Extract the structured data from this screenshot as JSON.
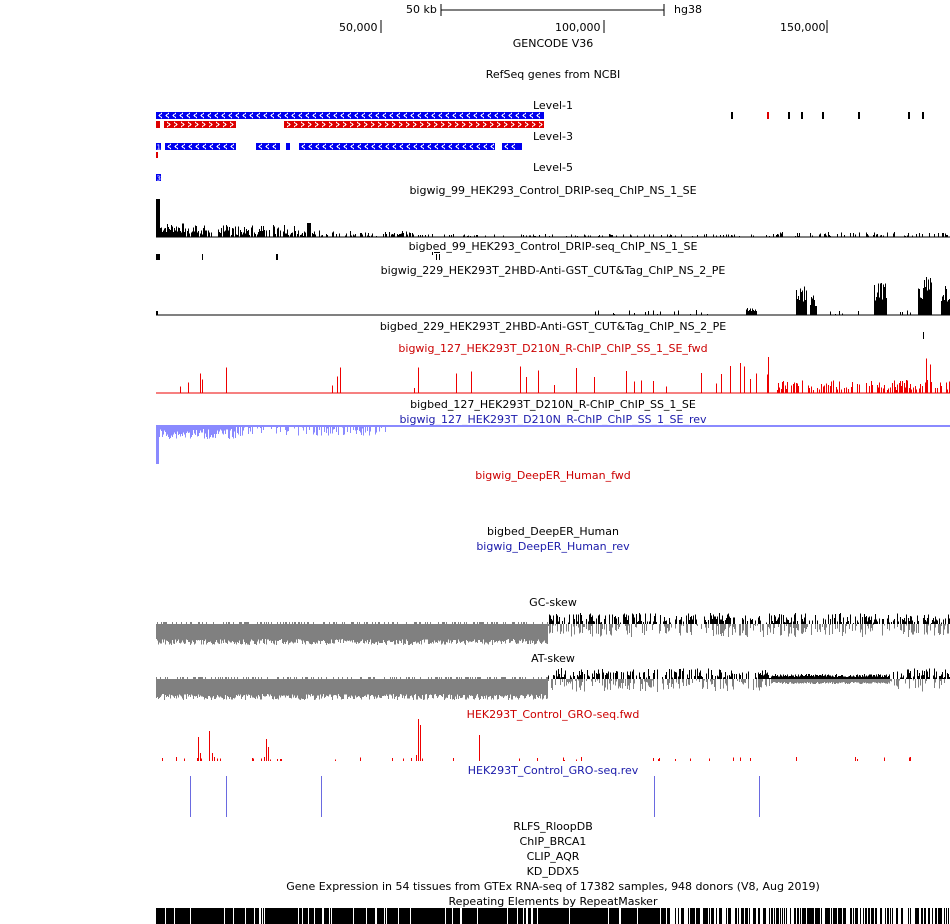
{
  "ruler": {
    "scale_label": "50 kb",
    "assembly": "hg38",
    "ticks": [
      "50,000",
      "100,000",
      "150,000"
    ]
  },
  "tracks": [
    {
      "id": "gencode",
      "label": "GENCODE V36",
      "color": "#000000"
    },
    {
      "id": "refseq",
      "label": "RefSeq genes from NCBI",
      "color": "#000000"
    },
    {
      "id": "level1",
      "label": "Level-1",
      "color": "#000000"
    },
    {
      "id": "level3",
      "label": "Level-3",
      "color": "#000000"
    },
    {
      "id": "level5",
      "label": "Level-5",
      "color": "#000000"
    },
    {
      "id": "drip_bw",
      "label": "bigwig_99_HEK293_Control_DRIP-seq_ChIP_NS_1_SE",
      "color": "#000000"
    },
    {
      "id": "drip_bb",
      "label": "bigbed_99_HEK293_Control_DRIP-seq_ChIP_NS_1_SE",
      "color": "#000000"
    },
    {
      "id": "cuttag_bw",
      "label": "bigwig_229_HEK293T_2HBD-Anti-GST_CUT&Tag_ChIP_NS_2_PE",
      "color": "#000000"
    },
    {
      "id": "cuttag_bb",
      "label": "bigbed_229_HEK293T_2HBD-Anti-GST_CUT&Tag_ChIP_NS_2_PE",
      "color": "#000000"
    },
    {
      "id": "rchip_fwd",
      "label": "bigwig_127_HEK293T_D210N_R-ChIP_ChIP_SS_1_SE_fwd",
      "color": "#cc0000"
    },
    {
      "id": "rchip_bb",
      "label": "bigbed_127_HEK293T_D210N_R-ChIP_ChIP_SS_1_SE",
      "color": "#000000"
    },
    {
      "id": "rchip_rev",
      "label": "bigwig_127_HEK293T_D210N_R-ChIP_ChIP_SS_1_SE_rev",
      "color": "#1a1aaa"
    },
    {
      "id": "deeper_fwd",
      "label": "bigwig_DeepER_Human_fwd",
      "color": "#cc0000"
    },
    {
      "id": "deeper_bb",
      "label": "bigbed_DeepER_Human",
      "color": "#000000"
    },
    {
      "id": "deeper_rev",
      "label": "bigwig_DeepER_Human_rev",
      "color": "#1a1aaa"
    },
    {
      "id": "gcskew",
      "label": "GC-skew",
      "color": "#000000"
    },
    {
      "id": "atskew",
      "label": "AT-skew",
      "color": "#000000"
    },
    {
      "id": "gro_fwd",
      "label": "HEK293T_Control_GRO-seq.fwd",
      "color": "#cc0000"
    },
    {
      "id": "gro_rev",
      "label": "HEK293T_Control_GRO-seq.rev",
      "color": "#1a1aaa"
    },
    {
      "id": "rlfs",
      "label": "RLFS_RloopDB",
      "color": "#000000"
    },
    {
      "id": "brca1",
      "label": "ChIP_BRCA1",
      "color": "#000000"
    },
    {
      "id": "aqr",
      "label": "CLIP_AQR",
      "color": "#000000"
    },
    {
      "id": "ddx5",
      "label": "KD_DDX5",
      "color": "#000000"
    },
    {
      "id": "gtex",
      "label": "Gene Expression in 54 tissues from GTEx RNA-seq of 17382 samples, 948 donors (V8, Aug 2019)",
      "color": "#000000"
    },
    {
      "id": "rmsk",
      "label": "Repeating Elements by RepeatMasker",
      "color": "#000000"
    }
  ],
  "level_marks": {
    "level1_exon": "1",
    "level3_exon": "3",
    "level5_exon": "3"
  },
  "colors": {
    "minus_strand": "#0000ee",
    "plus_strand": "#dd0000",
    "signal_black": "#000000",
    "signal_red": "#ee0000",
    "signal_blue": "#8a8aff",
    "skew_gray": "#808080",
    "gro_rev_line": "#6a6ae0"
  }
}
